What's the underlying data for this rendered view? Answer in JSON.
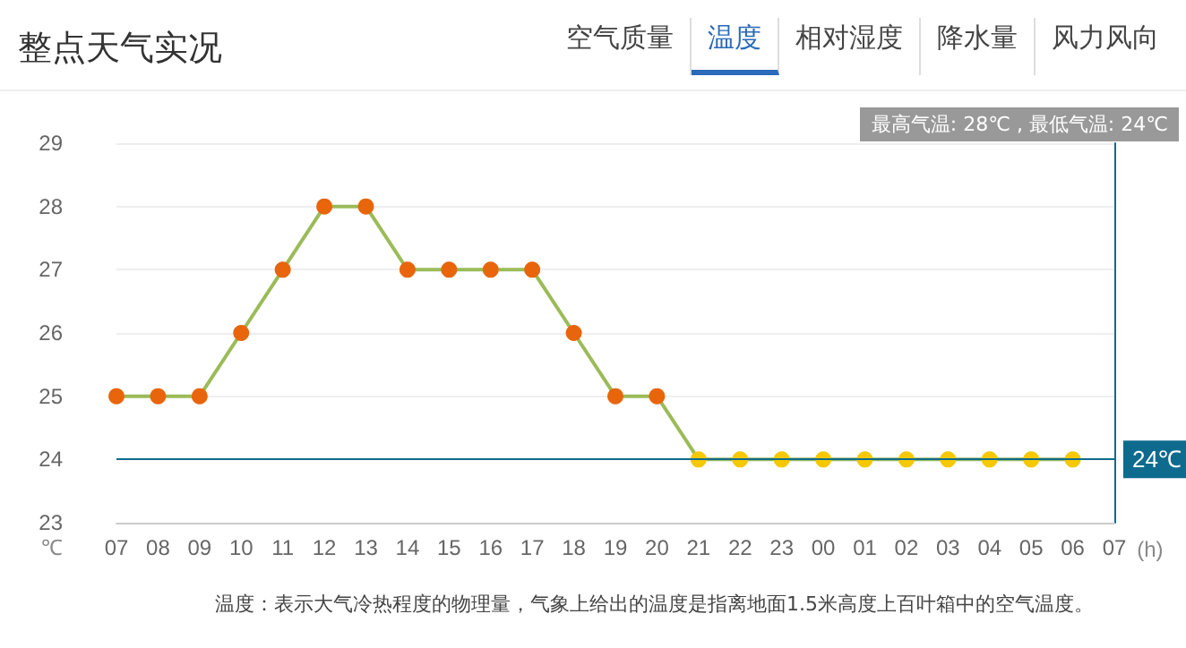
{
  "chart_data": {
    "type": "line",
    "title": "整点天气实况",
    "xlabel": "(h)",
    "ylabel": "℃",
    "categories": [
      "07",
      "08",
      "09",
      "10",
      "11",
      "12",
      "13",
      "14",
      "15",
      "16",
      "17",
      "18",
      "19",
      "20",
      "21",
      "22",
      "23",
      "00",
      "01",
      "02",
      "03",
      "04",
      "05",
      "06",
      "07"
    ],
    "series": [
      {
        "color": "#9bbb59",
        "values": [
          25,
          25,
          25,
          26,
          27,
          28,
          28,
          27,
          27,
          27,
          27,
          26,
          25,
          25,
          24,
          24,
          24,
          24,
          24,
          24,
          24,
          24,
          24,
          24,
          null
        ],
        "colors": [
          "#e8650c",
          "#e8650c",
          "#e8650c",
          "#e8650c",
          "#e8650c",
          "#e8650c",
          "#e8650c",
          "#e8650c",
          "#e8650c",
          "#e8650c",
          "#e8650c",
          "#e8650c",
          "#e8650c",
          "#e8650c",
          "#f5c800",
          "#f5c800",
          "#f5c800",
          "#f5c800",
          "#f5c800",
          "#f5c800",
          "#f5c800",
          "#f5c800",
          "#f5c800",
          "#f5c800",
          "#f5c800"
        ]
      }
    ],
    "ylim": [
      23,
      29
    ],
    "yticks": [
      23,
      24,
      25,
      26,
      27,
      28,
      29
    ],
    "grid": "y",
    "marker": "circle",
    "line_style": "solid",
    "ref_lines": [
      {
        "axis": "y",
        "value": 24,
        "label": "24℃",
        "color": "#0e6b8e"
      }
    ],
    "annotations": [
      "最高气温: 28℃ , 最低气温: 24℃",
      "温度：表示大气冷热程度的物理量，气象上给出的温度是指离地面1.5米高度上百叶箱中的空气温度。",
      "空气质量",
      "温度",
      "相对湿度",
      "降水量",
      "风力风向"
    ]
  }
}
